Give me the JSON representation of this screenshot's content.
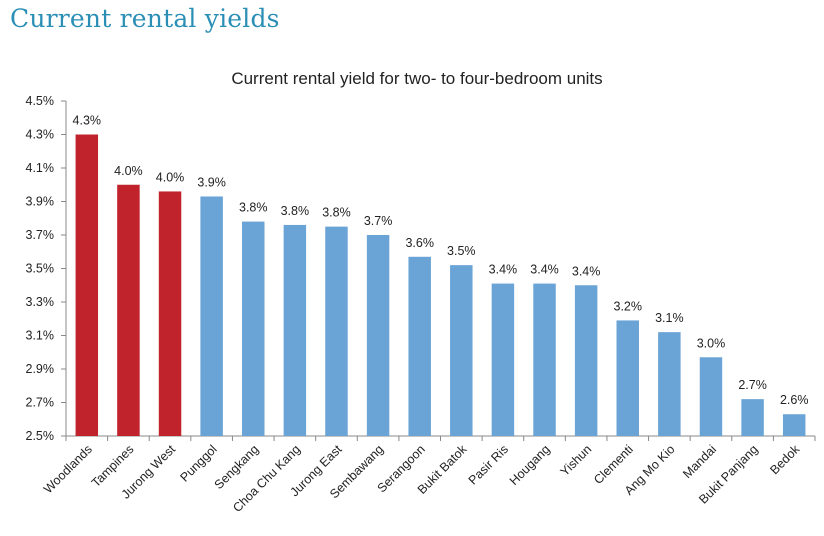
{
  "page": {
    "heading": "Current rental yields"
  },
  "colors": {
    "highlight": "#c0232b",
    "default": "#6aa3d5",
    "heading": "#2b8fb5"
  },
  "chart_data": {
    "type": "bar",
    "title": "Current rental yield for two- to four-bedroom units",
    "xlabel": "",
    "ylabel": "",
    "ylim": [
      2.5,
      4.5
    ],
    "yticks": [
      "4.5%",
      "4.3%",
      "4.1%",
      "3.9%",
      "3.7%",
      "3.5%",
      "3.3%",
      "3.1%",
      "2.9%",
      "2.7%",
      "2.5%"
    ],
    "ytick_values": [
      4.5,
      4.3,
      4.1,
      3.9,
      3.7,
      3.5,
      3.3,
      3.1,
      2.9,
      2.7,
      2.5
    ],
    "categories": [
      "Woodlands",
      "Tampines",
      "Jurong West",
      "Punggol",
      "Sengkang",
      "Choa Chu Kang",
      "Jurong East",
      "Sembawang",
      "Serangoon",
      "Bukit Batok",
      "Pasir Ris",
      "Hougang",
      "Yishun",
      "Clementi",
      "Ang Mo Kio",
      "Mandai",
      "Bukit Panjang",
      "Bedok"
    ],
    "values": [
      4.3,
      4.0,
      3.96,
      3.93,
      3.78,
      3.76,
      3.75,
      3.7,
      3.57,
      3.52,
      3.41,
      3.41,
      3.4,
      3.19,
      3.12,
      2.97,
      2.72,
      2.63
    ],
    "labels": [
      "4.3%",
      "4.0%",
      "4.0%",
      "3.9%",
      "3.8%",
      "3.8%",
      "3.8%",
      "3.7%",
      "3.6%",
      "3.5%",
      "3.4%",
      "3.4%",
      "3.4%",
      "3.2%",
      "3.1%",
      "3.0%",
      "2.7%",
      "2.6%"
    ],
    "highlighted": [
      true,
      true,
      true,
      false,
      false,
      false,
      false,
      false,
      false,
      false,
      false,
      false,
      false,
      false,
      false,
      false,
      false,
      false
    ],
    "grid": false,
    "legend": "none"
  }
}
